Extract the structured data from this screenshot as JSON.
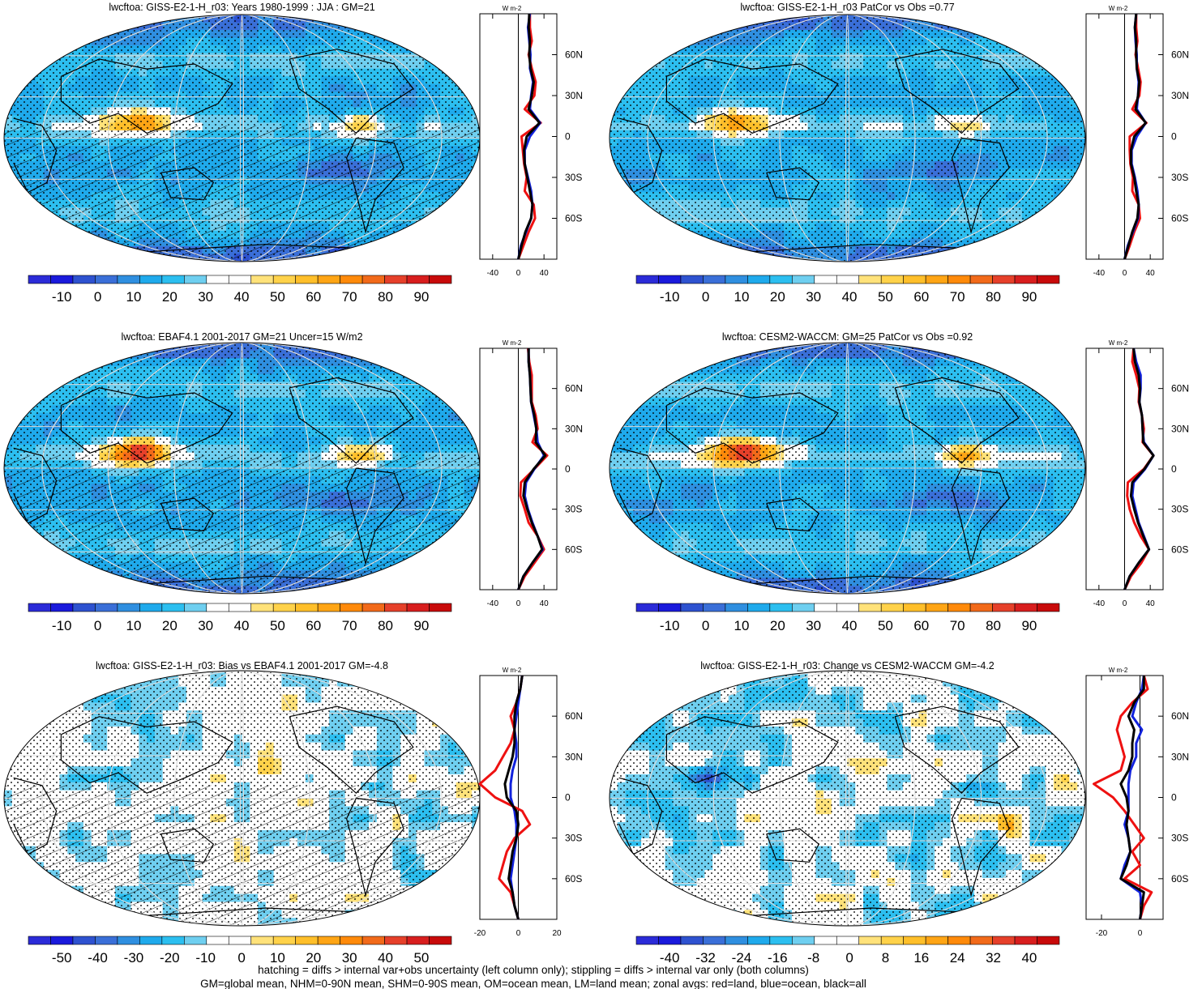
{
  "colors": {
    "levels_ordered_low_to_high": [
      "#2b2bd8",
      "#1a1adc",
      "#2e52d0",
      "#3a6fd8",
      "#2f8fe0",
      "#1faaec",
      "#2cbff0",
      "#6fcff0",
      "#ffffff",
      "#ffffff",
      "#ffe27a",
      "#ffd24a",
      "#ffbf2a",
      "#ffa515",
      "#ff8a0a",
      "#f26a1a",
      "#e6402a",
      "#d81e1e",
      "#c80a0a"
    ],
    "line_land": "#ee1111",
    "line_ocean": "#1122dd",
    "line_all": "#000000",
    "coast": "#000000",
    "grid": "#dddddd"
  },
  "lat_ticks": [
    "60N",
    "30N",
    "0",
    "30S",
    "60S"
  ],
  "footer": {
    "line1": "hatching = diffs > internal var+obs uncertainty (left column only); stippling = diffs > internal var only (both columns)",
    "line2": "GM=global mean, NHM=0-90N mean, SHM=0-90S mean, OM=ocean mean, LM=land mean; zonal avgs: red=land, blue=ocean, black=all"
  },
  "chart_data": [
    {
      "type": "heatmap",
      "title": "lwcftoa: GISS-E2-1-H_r03: Years 1980-1999 : JJA : GM=21",
      "colorbar_ticks": [
        "-10",
        "0",
        "10",
        "20",
        "30",
        "40",
        "50",
        "60",
        "70",
        "80",
        "90"
      ],
      "colorbar_range": [
        -15,
        95
      ],
      "zonal_units": "W m-2",
      "zonal_xticks": [
        -40,
        0,
        40
      ],
      "zonal_xlim": [
        -60,
        60
      ],
      "zonal_lat": [
        90,
        80,
        70,
        60,
        50,
        40,
        30,
        20,
        10,
        0,
        -10,
        -20,
        -30,
        -40,
        -50,
        -60,
        -70,
        -80,
        -90
      ],
      "zonal_land": [
        18,
        18,
        21,
        16,
        21,
        27,
        25,
        10,
        35,
        5,
        7,
        9,
        13,
        10,
        24,
        26,
        16,
        8,
        0
      ],
      "zonal_ocean": [
        18,
        15,
        17,
        19,
        18,
        23,
        20,
        18,
        34,
        18,
        10,
        10,
        15,
        20,
        22,
        20,
        12,
        4,
        0
      ],
      "zonal_all": [
        17,
        16,
        18,
        17,
        19,
        24,
        21,
        16,
        33,
        13,
        9,
        10,
        14,
        18,
        22,
        20,
        11,
        5,
        0
      ],
      "hatch": true,
      "stipple": true,
      "pattern": "mean",
      "hot": 1.0
    },
    {
      "type": "heatmap",
      "title": "lwcftoa: GISS-E2-1-H_r03 PatCor vs Obs =0.77",
      "colorbar_ticks": [
        "-10",
        "0",
        "10",
        "20",
        "30",
        "40",
        "50",
        "60",
        "70",
        "80",
        "90"
      ],
      "colorbar_range": [
        -15,
        95
      ],
      "zonal_units": "W m-2",
      "zonal_xticks": [
        -40,
        0,
        40
      ],
      "zonal_xlim": [
        -60,
        60
      ],
      "zonal_lat": [
        90,
        80,
        70,
        60,
        50,
        40,
        30,
        20,
        10,
        0,
        -10,
        -20,
        -30,
        -40,
        -50,
        -60,
        -70,
        -80,
        -90
      ],
      "zonal_land": [
        18,
        18,
        20,
        17,
        21,
        25,
        23,
        12,
        34,
        8,
        8,
        9,
        13,
        12,
        22,
        24,
        15,
        8,
        0
      ],
      "zonal_ocean": [
        18,
        16,
        17,
        19,
        19,
        22,
        21,
        19,
        33,
        19,
        11,
        11,
        16,
        20,
        22,
        21,
        13,
        5,
        0
      ],
      "zonal_all": [
        18,
        16,
        18,
        18,
        19,
        23,
        21,
        17,
        33,
        15,
        10,
        10,
        15,
        18,
        22,
        20,
        12,
        6,
        0
      ],
      "hatch": false,
      "stipple": true,
      "pattern": "mean",
      "hot": 1.0
    },
    {
      "type": "heatmap",
      "title": "lwcftoa: EBAF4.1 2001-2017 GM=21 Uncer=15 W/m2",
      "colorbar_ticks": [
        "-10",
        "0",
        "10",
        "20",
        "30",
        "40",
        "50",
        "60",
        "70",
        "80",
        "90"
      ],
      "colorbar_range": [
        -15,
        95
      ],
      "zonal_units": "W m-2",
      "zonal_xticks": [
        -40,
        0,
        40
      ],
      "zonal_xlim": [
        -60,
        60
      ],
      "zonal_lat": [
        90,
        80,
        70,
        60,
        50,
        40,
        30,
        20,
        10,
        0,
        -10,
        -20,
        -30,
        -40,
        -50,
        -60,
        -70,
        -80,
        -90
      ],
      "zonal_land": [
        15,
        17,
        21,
        21,
        21,
        27,
        30,
        22,
        45,
        25,
        4,
        3,
        10,
        16,
        30,
        40,
        25,
        10,
        0
      ],
      "zonal_ocean": [
        16,
        16,
        18,
        19,
        20,
        24,
        28,
        30,
        40,
        25,
        12,
        10,
        15,
        22,
        30,
        38,
        22,
        8,
        0
      ],
      "zonal_all": [
        16,
        16,
        18,
        19,
        20,
        25,
        28,
        27,
        42,
        24,
        10,
        8,
        14,
        21,
        30,
        37,
        22,
        8,
        0
      ],
      "hatch": true,
      "stipple": true,
      "pattern": "mean",
      "hot": 1.5
    },
    {
      "type": "heatmap",
      "title": "lwcftoa: CESM2-WACCM: GM=25 PatCor vs Obs =0.92",
      "colorbar_ticks": [
        "-10",
        "0",
        "10",
        "20",
        "30",
        "40",
        "50",
        "60",
        "70",
        "80",
        "90"
      ],
      "colorbar_range": [
        -15,
        95
      ],
      "zonal_units": "W m-2",
      "zonal_xticks": [
        -40,
        0,
        40
      ],
      "zonal_xlim": [
        -60,
        60
      ],
      "zonal_lat": [
        90,
        80,
        70,
        60,
        50,
        40,
        30,
        20,
        10,
        0,
        -10,
        -20,
        -30,
        -40,
        -50,
        -60,
        -70,
        -80,
        -90
      ],
      "zonal_land": [
        14,
        12,
        18,
        23,
        22,
        27,
        30,
        28,
        45,
        30,
        5,
        4,
        8,
        15,
        25,
        38,
        26,
        10,
        0
      ],
      "zonal_ocean": [
        14,
        18,
        25,
        25,
        23,
        27,
        28,
        30,
        45,
        32,
        14,
        12,
        17,
        22,
        30,
        38,
        22,
        8,
        0
      ],
      "zonal_all": [
        14,
        16,
        22,
        24,
        23,
        27,
        28,
        29,
        45,
        31,
        12,
        10,
        15,
        21,
        29,
        38,
        22,
        8,
        0
      ],
      "hatch": false,
      "stipple": true,
      "pattern": "mean",
      "hot": 1.6
    },
    {
      "type": "heatmap",
      "title": "lwcftoa: GISS-E2-1-H_r03: Bias vs EBAF4.1 2001-2017 GM=-4.8",
      "colorbar_ticks": [
        "-50",
        "-40",
        "-30",
        "-20",
        "-10",
        "0",
        "10",
        "20",
        "30",
        "40",
        "50"
      ],
      "colorbar_range": [
        -55,
        55
      ],
      "zonal_units": "W m-2",
      "zonal_xticks": [
        -20,
        0,
        20
      ],
      "zonal_xlim": [
        -20,
        20
      ],
      "zonal_lat": [
        90,
        80,
        70,
        60,
        50,
        40,
        30,
        20,
        10,
        0,
        -10,
        -20,
        -30,
        -40,
        -50,
        -60,
        -70,
        -80,
        -90
      ],
      "zonal_land": [
        2,
        1,
        -1,
        -4,
        -2,
        -4,
        -8,
        -12,
        -20,
        -12,
        2,
        6,
        -2,
        -6,
        -8,
        -10,
        -4,
        -2,
        0
      ],
      "zonal_ocean": [
        2,
        1,
        0,
        -1,
        -2,
        -1,
        -1,
        -3,
        -4,
        -4,
        -2,
        -1,
        -1,
        -2,
        -3,
        -4,
        -3,
        -2,
        0
      ],
      "zonal_all": [
        2,
        1,
        -1,
        -2,
        -2,
        -2,
        -3,
        -5,
        -7,
        -6,
        -1,
        0,
        -1,
        -3,
        -4,
        -5,
        -3,
        -2,
        0
      ],
      "hatch": true,
      "stipple": true,
      "pattern": "diff",
      "hot": 1.0
    },
    {
      "type": "heatmap",
      "title": "lwcftoa: GISS-E2-1-H_r03: Change vs CESM2-WACCM GM=-4.2",
      "colorbar_ticks": [
        "-40",
        "-32",
        "-24",
        "-16",
        "-8",
        "0",
        "8",
        "16",
        "24",
        "32",
        "40"
      ],
      "colorbar_range": [
        -44,
        44
      ],
      "zonal_units": "W m-2",
      "zonal_xticks": [
        -20,
        0
      ],
      "zonal_xlim": [
        -28,
        12
      ],
      "zonal_lat": [
        90,
        80,
        70,
        60,
        50,
        40,
        30,
        20,
        10,
        0,
        -10,
        -20,
        -30,
        -40,
        -50,
        -60,
        -70,
        -80,
        -90
      ],
      "zonal_land": [
        2,
        4,
        -4,
        -10,
        -12,
        -10,
        -8,
        -10,
        -24,
        -14,
        -8,
        -3,
        2,
        -4,
        0,
        -8,
        6,
        2,
        0
      ],
      "zonal_ocean": [
        2,
        1,
        -2,
        -4,
        1,
        -2,
        -2,
        -5,
        -6,
        -6,
        -6,
        -8,
        -6,
        -5,
        -8,
        -10,
        0,
        1,
        0
      ],
      "zonal_all": [
        2,
        2,
        -3,
        -6,
        -3,
        -4,
        -4,
        -6,
        -10,
        -7,
        -6,
        -7,
        -6,
        -5,
        -7,
        -10,
        2,
        1,
        0
      ],
      "hatch": false,
      "stipple": true,
      "pattern": "diff",
      "hot": 1.0
    }
  ]
}
